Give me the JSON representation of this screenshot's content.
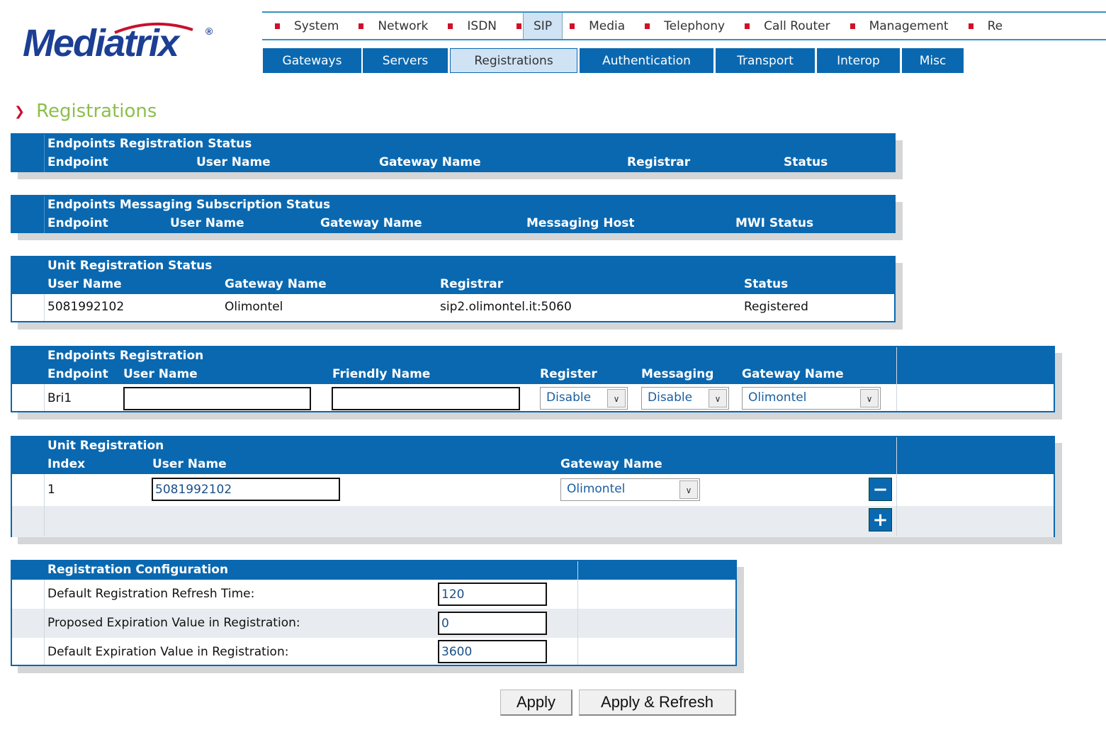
{
  "logo": {
    "text": "Mediatrix",
    "mark": "®"
  },
  "topnav": [
    "System",
    "Network",
    "ISDN",
    "SIP",
    "Media",
    "Telephony",
    "Call Router",
    "Management",
    "Re"
  ],
  "topnav_active": "SIP",
  "subnav": [
    "Gateways",
    "Servers",
    "Registrations",
    "Authentication",
    "Transport",
    "Interop",
    "Misc"
  ],
  "subnav_active": "Registrations",
  "page_title": "Registrations",
  "colors": {
    "header_blue": "#0a68b0",
    "title_green": "#8cbf4c",
    "accent_red": "#d0102a"
  },
  "ep_status": {
    "title": "Endpoints Registration Status",
    "cols": [
      "Endpoint",
      "User Name",
      "Gateway Name",
      "Registrar",
      "Status"
    ]
  },
  "msg_status": {
    "title": "Endpoints Messaging Subscription Status",
    "cols": [
      "Endpoint",
      "User Name",
      "Gateway Name",
      "Messaging Host",
      "MWI Status"
    ]
  },
  "unit_status": {
    "title": "Unit Registration Status",
    "cols": [
      "User Name",
      "Gateway Name",
      "Registrar",
      "Status"
    ],
    "rows": [
      [
        "5081992102",
        "Olimontel",
        "sip2.olimontel.it:5060",
        "Registered"
      ]
    ]
  },
  "ep_reg": {
    "title": "Endpoints Registration",
    "cols": [
      "Endpoint",
      "User Name",
      "Friendly Name",
      "Register",
      "Messaging",
      "Gateway Name"
    ],
    "rows": [
      {
        "endpoint": "Bri1",
        "user_name": "",
        "friendly_name": "",
        "register": "Disable",
        "messaging": "Disable",
        "gateway": "Olimontel"
      }
    ]
  },
  "unit_reg": {
    "title": "Unit Registration",
    "cols": [
      "Index",
      "User Name",
      "Gateway Name"
    ],
    "rows": [
      {
        "index": "1",
        "user_name": "5081992102",
        "gateway": "Olimontel"
      }
    ],
    "remove_label": "−",
    "add_label": "+"
  },
  "reg_config": {
    "title": "Registration Configuration",
    "rows": [
      {
        "label": "Default Registration Refresh Time:",
        "value": "120"
      },
      {
        "label": "Proposed Expiration Value in Registration:",
        "value": "0"
      },
      {
        "label": "Default Expiration Value in Registration:",
        "value": "3600"
      }
    ]
  },
  "buttons": {
    "apply": "Apply",
    "apply_refresh": "Apply & Refresh"
  }
}
